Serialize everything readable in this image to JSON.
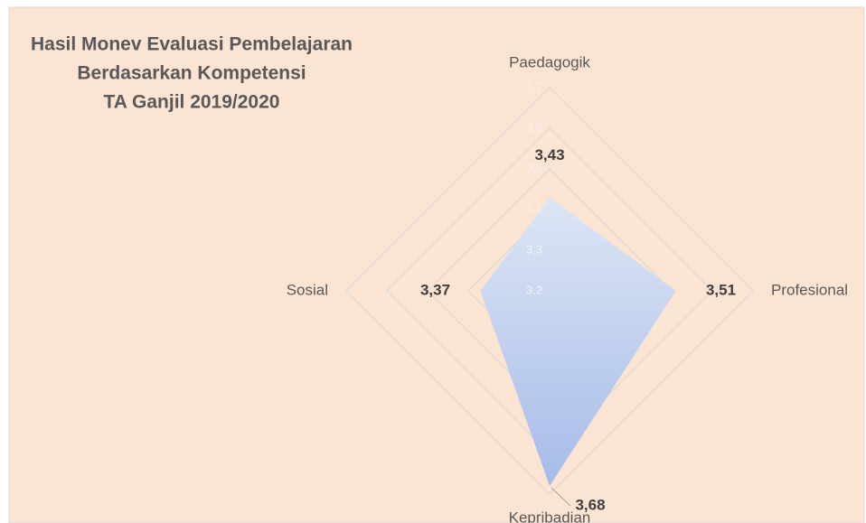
{
  "chart_data": {
    "type": "radar",
    "title": [
      "Hasil Monev Evaluasi Pembelajaran",
      "Berdasarkan Kompetensi",
      "TA Ganjil 2019/2020"
    ],
    "categories": [
      "Paedagogik",
      "Profesional",
      "Kepribadian",
      "Sosial"
    ],
    "values": [
      3.43,
      3.51,
      3.68,
      3.37
    ],
    "value_labels": [
      "3,43",
      "3,51",
      "3,68",
      "3,37"
    ],
    "ylim": [
      3.2,
      3.7
    ],
    "yticks": [
      {
        "value": 3.2,
        "label": "3,2"
      },
      {
        "value": 3.3,
        "label": "3,3"
      },
      {
        "value": 3.4,
        "label": "3,4"
      },
      {
        "value": 3.5,
        "label": "3,5"
      },
      {
        "value": 3.6,
        "label": "3,6"
      },
      {
        "value": 3.7,
        "label": "3,7"
      }
    ],
    "color": "#b4c7ec",
    "grid": true
  }
}
